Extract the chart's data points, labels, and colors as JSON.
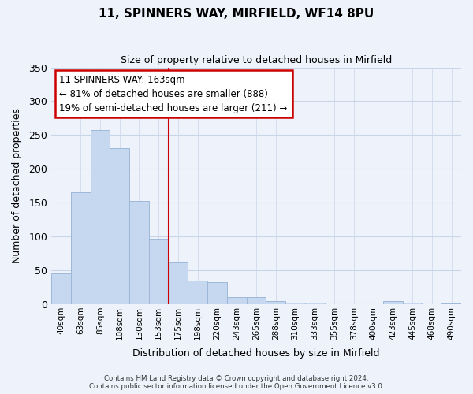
{
  "title": "11, SPINNERS WAY, MIRFIELD, WF14 8PU",
  "subtitle": "Size of property relative to detached houses in Mirfield",
  "xlabel": "Distribution of detached houses by size in Mirfield",
  "ylabel": "Number of detached properties",
  "bar_labels": [
    "40sqm",
    "63sqm",
    "85sqm",
    "108sqm",
    "130sqm",
    "153sqm",
    "175sqm",
    "198sqm",
    "220sqm",
    "243sqm",
    "265sqm",
    "288sqm",
    "310sqm",
    "333sqm",
    "355sqm",
    "378sqm",
    "400sqm",
    "423sqm",
    "445sqm",
    "468sqm",
    "490sqm"
  ],
  "bar_heights": [
    45,
    165,
    258,
    231,
    153,
    97,
    62,
    35,
    33,
    11,
    10,
    5,
    2,
    2,
    0,
    0,
    0,
    5,
    2,
    0,
    1
  ],
  "bar_color": "#c5d8f0",
  "bar_edge_color": "#a0b8d8",
  "vline_x_index": 6,
  "vline_color": "#cc0000",
  "annotation_line1": "11 SPINNERS WAY: 163sqm",
  "annotation_line2": "← 81% of detached houses are smaller (888)",
  "annotation_line3": "19% of semi-detached houses are larger (211) →",
  "ylim": [
    0,
    350
  ],
  "yticks": [
    0,
    50,
    100,
    150,
    200,
    250,
    300,
    350
  ],
  "footer_text": "Contains HM Land Registry data © Crown copyright and database right 2024.\nContains public sector information licensed under the Open Government Licence v3.0.",
  "bg_color": "#eef2fa",
  "plot_bg_color": "#eef2fa",
  "grid_color": "#c8d4e8"
}
